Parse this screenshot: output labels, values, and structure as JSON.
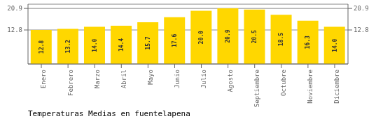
{
  "chart_data": {
    "type": "bar",
    "title": "Temperaturas Medias en fuentelapena",
    "categories": [
      "Enero",
      "Febrero",
      "Marzo",
      "Abril",
      "Mayo",
      "Junio",
      "Julio",
      "Agosto",
      "Septiembre",
      "Octubre",
      "Noviembre",
      "Diciembre"
    ],
    "values": [
      12.8,
      13.2,
      14.0,
      14.4,
      15.7,
      17.6,
      20.0,
      20.9,
      20.5,
      18.5,
      16.3,
      14.0
    ],
    "value_labels": [
      "12.8",
      "13.2",
      "14.0",
      "14.4",
      "15.7",
      "17.6",
      "20.0",
      "20.9",
      "20.5",
      "18.5",
      "16.3",
      "14.0"
    ],
    "data_labels": true,
    "color": "#FFD700",
    "ylim": [
      0,
      22.5
    ],
    "yticks": [
      12.8,
      20.9
    ],
    "y2lim": [
      0,
      22.5
    ],
    "y2ticks": [
      12.8,
      20.9
    ],
    "grid": true
  }
}
